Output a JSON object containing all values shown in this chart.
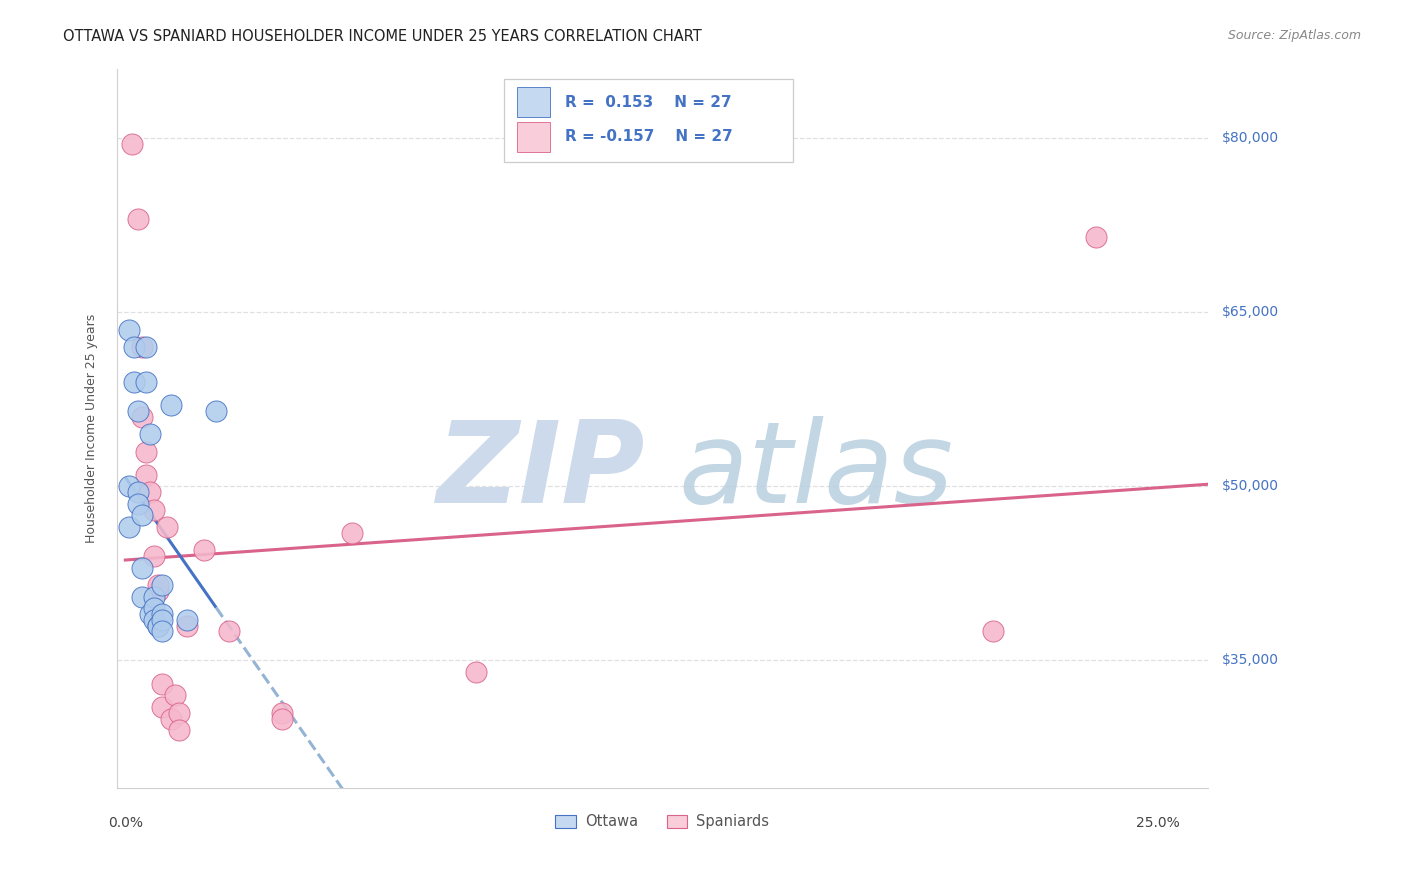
{
  "title": "OTTAWA VS SPANIARD HOUSEHOLDER INCOME UNDER 25 YEARS CORRELATION CHART",
  "source": "Source: ZipAtlas.com",
  "ylabel": "Householder Income Under 25 years",
  "ytick_labels": [
    "$35,000",
    "$50,000",
    "$65,000",
    "$80,000"
  ],
  "ytick_values": [
    35000,
    50000,
    65000,
    80000
  ],
  "ymin": 24000,
  "ymax": 86000,
  "xmin": -0.002,
  "xmax": 0.262,
  "ottawa_color": "#b0ccec",
  "ottawa_line_color": "#4472c4",
  "spaniard_color": "#f5b8cc",
  "spaniard_line_color": "#d9638a",
  "legend_box_ottawa_color": "#c5d9f1",
  "legend_box_spaniard_color": "#f9cdd9",
  "watermark_zip_color": "#cddaeb",
  "watermark_atlas_color": "#b8cfe0",
  "background_color": "#ffffff",
  "grid_color": "#e0e0e0",
  "ottawa_x": [
    0.001,
    0.001,
    0.001,
    0.002,
    0.002,
    0.003,
    0.003,
    0.003,
    0.004,
    0.004,
    0.004,
    0.005,
    0.005,
    0.006,
    0.006,
    0.007,
    0.007,
    0.007,
    0.008,
    0.008,
    0.009,
    0.009,
    0.009,
    0.009,
    0.011,
    0.015,
    0.022
  ],
  "ottawa_y": [
    63500,
    50000,
    46500,
    62000,
    59000,
    56500,
    49500,
    48500,
    47500,
    43000,
    40500,
    62000,
    59000,
    54500,
    39000,
    40500,
    39500,
    38500,
    38000,
    38000,
    41500,
    39000,
    38500,
    37500,
    57000,
    38500,
    56500
  ],
  "spaniard_x": [
    0.0015,
    0.003,
    0.004,
    0.004,
    0.005,
    0.005,
    0.006,
    0.007,
    0.007,
    0.008,
    0.008,
    0.009,
    0.009,
    0.01,
    0.011,
    0.012,
    0.013,
    0.013,
    0.015,
    0.019,
    0.025,
    0.038,
    0.038,
    0.055,
    0.085,
    0.21,
    0.235
  ],
  "spaniard_y": [
    79500,
    73000,
    62000,
    56000,
    53000,
    51000,
    49500,
    48000,
    44000,
    41000,
    41500,
    33000,
    31000,
    46500,
    30000,
    32000,
    30500,
    29000,
    38000,
    44500,
    37500,
    30500,
    30000,
    46000,
    34000,
    37500,
    71500
  ],
  "title_fontsize": 10.5,
  "source_fontsize": 9,
  "axis_label_fontsize": 9,
  "tick_fontsize": 10,
  "legend_fontsize": 11
}
